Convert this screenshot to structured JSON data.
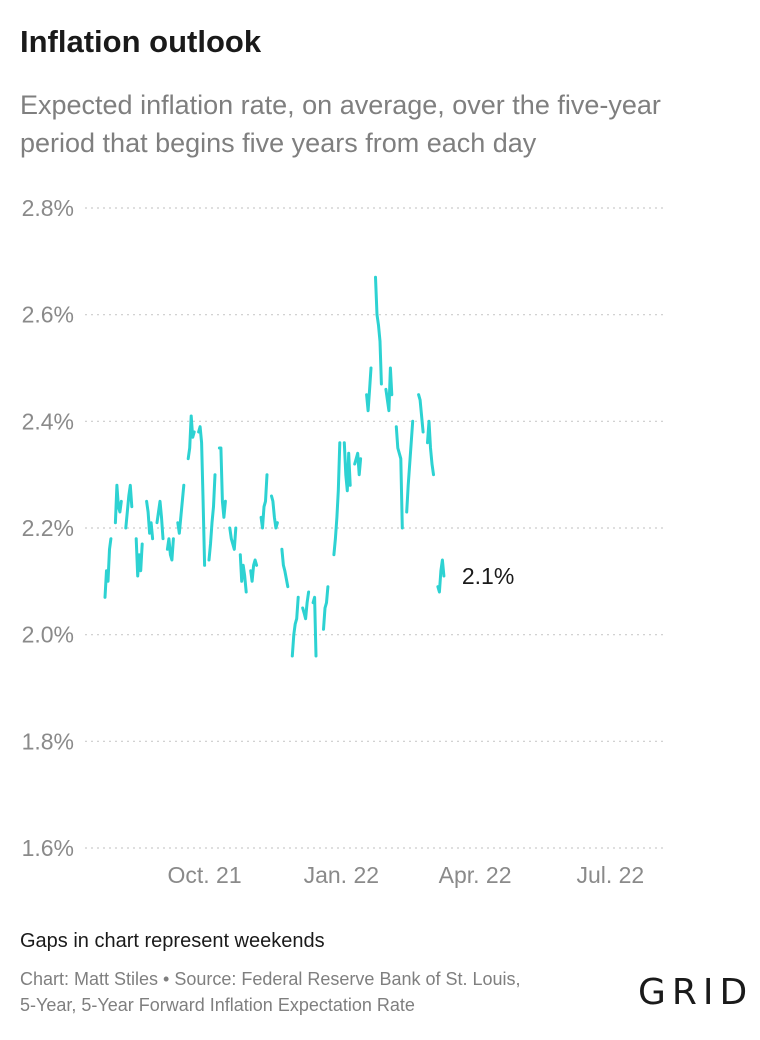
{
  "header": {
    "title": "Inflation outlook",
    "subtitle": "Expected inflation rate, on average, over the five-year period that begins five years from each day"
  },
  "footer": {
    "note": "Gaps in chart represent weekends",
    "credit_line1": "Chart: Matt Stiles • Source: Federal Reserve Bank of St. Louis,",
    "credit_line2": "5-Year, 5-Year Forward Inflation Expectation Rate",
    "logo": "GRID"
  },
  "colors": {
    "line": "#2dd2d2",
    "grid": "#cccccc",
    "tick_text": "#8a8a8a"
  },
  "chart_data": {
    "type": "line",
    "title": "Inflation outlook",
    "subtitle": "Expected inflation rate, on average, over the five-year period that begins five years from each day",
    "ylim": [
      1.6,
      2.8
    ],
    "y_ticks": [
      {
        "value": 1.6,
        "label": "1.6%"
      },
      {
        "value": 1.8,
        "label": "1.8%"
      },
      {
        "value": 2.0,
        "label": "2.0%"
      },
      {
        "value": 2.2,
        "label": "2.2%"
      },
      {
        "value": 2.4,
        "label": "2.4%"
      },
      {
        "value": 2.6,
        "label": "2.6%"
      },
      {
        "value": 2.8,
        "label": "2.8%"
      }
    ],
    "xlim": [
      "2021-07-26",
      "2022-07-25"
    ],
    "x_ticks": [
      {
        "date": "2021-10-01",
        "label": "Oct. 21"
      },
      {
        "date": "2022-01-01",
        "label": "Jan. 22"
      },
      {
        "date": "2022-04-01",
        "label": "Apr. 22"
      },
      {
        "date": "2022-07-01",
        "label": "Jul. 22"
      }
    ],
    "grid": true,
    "end_label": "2.1%",
    "series": [
      {
        "segments": [
          [
            [
              "2021-07-26",
              2.07
            ],
            [
              "2021-07-27",
              2.12
            ],
            [
              "2021-07-28",
              2.1
            ],
            [
              "2021-07-29",
              2.16
            ],
            [
              "2021-07-30",
              2.18
            ]
          ],
          [
            [
              "2021-08-02",
              2.21
            ],
            [
              "2021-08-03",
              2.28
            ],
            [
              "2021-08-04",
              2.24
            ],
            [
              "2021-08-05",
              2.23
            ],
            [
              "2021-08-06",
              2.25
            ]
          ],
          [
            [
              "2021-08-09",
              2.2
            ],
            [
              "2021-08-10",
              2.23
            ],
            [
              "2021-08-11",
              2.26
            ],
            [
              "2021-08-12",
              2.28
            ],
            [
              "2021-08-13",
              2.24
            ]
          ],
          [
            [
              "2021-08-16",
              2.18
            ],
            [
              "2021-08-17",
              2.11
            ],
            [
              "2021-08-18",
              2.15
            ],
            [
              "2021-08-19",
              2.12
            ],
            [
              "2021-08-20",
              2.17
            ]
          ],
          [
            [
              "2021-08-23",
              2.25
            ],
            [
              "2021-08-24",
              2.23
            ],
            [
              "2021-08-25",
              2.19
            ],
            [
              "2021-08-26",
              2.21
            ],
            [
              "2021-08-27",
              2.18
            ]
          ],
          [
            [
              "2021-08-30",
              2.21
            ],
            [
              "2021-08-31",
              2.23
            ],
            [
              "2021-09-01",
              2.25
            ],
            [
              "2021-09-02",
              2.22
            ],
            [
              "2021-09-03",
              2.18
            ]
          ],
          [
            [
              "2021-09-06",
              2.16
            ],
            [
              "2021-09-07",
              2.18
            ],
            [
              "2021-09-08",
              2.15
            ],
            [
              "2021-09-09",
              2.14
            ],
            [
              "2021-09-10",
              2.18
            ]
          ],
          [
            [
              "2021-09-13",
              2.21
            ],
            [
              "2021-09-14",
              2.19
            ],
            [
              "2021-09-15",
              2.22
            ],
            [
              "2021-09-16",
              2.25
            ],
            [
              "2021-09-17",
              2.28
            ]
          ],
          [
            [
              "2021-09-20",
              2.33
            ],
            [
              "2021-09-21",
              2.35
            ],
            [
              "2021-09-22",
              2.41
            ],
            [
              "2021-09-23",
              2.37
            ],
            [
              "2021-09-24",
              2.38
            ]
          ],
          [
            [
              "2021-09-27",
              2.38
            ],
            [
              "2021-09-28",
              2.39
            ],
            [
              "2021-09-29",
              2.36
            ],
            [
              "2021-09-30",
              2.25
            ],
            [
              "2021-10-01",
              2.13
            ]
          ],
          [
            [
              "2021-10-04",
              2.14
            ],
            [
              "2021-10-05",
              2.17
            ],
            [
              "2021-10-06",
              2.21
            ],
            [
              "2021-10-07",
              2.24
            ],
            [
              "2021-10-08",
              2.3
            ]
          ],
          [
            [
              "2021-10-11",
              2.35
            ],
            [
              "2021-10-12",
              2.35
            ],
            [
              "2021-10-13",
              2.25
            ],
            [
              "2021-10-14",
              2.22
            ],
            [
              "2021-10-15",
              2.25
            ]
          ],
          [
            [
              "2021-10-18",
              2.2
            ],
            [
              "2021-10-19",
              2.18
            ],
            [
              "2021-10-20",
              2.17
            ],
            [
              "2021-10-21",
              2.16
            ],
            [
              "2021-10-22",
              2.2
            ]
          ],
          [
            [
              "2021-10-25",
              2.15
            ],
            [
              "2021-10-26",
              2.1
            ],
            [
              "2021-10-27",
              2.13
            ],
            [
              "2021-10-28",
              2.11
            ],
            [
              "2021-10-29",
              2.08
            ]
          ],
          [
            [
              "2021-11-01",
              2.12
            ],
            [
              "2021-11-02",
              2.1
            ],
            [
              "2021-11-03",
              2.13
            ],
            [
              "2021-11-04",
              2.14
            ],
            [
              "2021-11-05",
              2.13
            ]
          ],
          [
            [
              "2021-11-08",
              2.22
            ],
            [
              "2021-11-09",
              2.2
            ],
            [
              "2021-11-10",
              2.24
            ],
            [
              "2021-11-11",
              2.25
            ],
            [
              "2021-11-12",
              2.3
            ]
          ],
          [
            [
              "2021-11-15",
              2.26
            ],
            [
              "2021-11-16",
              2.25
            ],
            [
              "2021-11-17",
              2.22
            ],
            [
              "2021-11-18",
              2.2
            ],
            [
              "2021-11-19",
              2.21
            ]
          ],
          [
            [
              "2021-11-22",
              2.16
            ],
            [
              "2021-11-23",
              2.13
            ],
            [
              "2021-11-24",
              2.12
            ],
            [
              "2021-11-26",
              2.09
            ]
          ],
          [
            [
              "2021-11-29",
              1.96
            ],
            [
              "2021-11-30",
              2.0
            ],
            [
              "2021-12-01",
              2.02
            ],
            [
              "2021-12-02",
              2.03
            ],
            [
              "2021-12-03",
              2.07
            ]
          ],
          [
            [
              "2021-12-06",
              2.05
            ],
            [
              "2021-12-07",
              2.04
            ],
            [
              "2021-12-08",
              2.03
            ],
            [
              "2021-12-09",
              2.06
            ],
            [
              "2021-12-10",
              2.08
            ]
          ],
          [
            [
              "2021-12-13",
              2.06
            ],
            [
              "2021-12-14",
              2.07
            ],
            [
              "2021-12-15",
              1.96
            ]
          ],
          [
            [
              "2021-12-20",
              2.01
            ],
            [
              "2021-12-21",
              2.05
            ],
            [
              "2021-12-22",
              2.06
            ],
            [
              "2021-12-23",
              2.09
            ]
          ],
          [
            [
              "2021-12-27",
              2.15
            ],
            [
              "2021-12-28",
              2.18
            ],
            [
              "2021-12-29",
              2.22
            ],
            [
              "2021-12-30",
              2.27
            ],
            [
              "2021-12-31",
              2.36
            ]
          ],
          [
            [
              "2022-01-03",
              2.36
            ],
            [
              "2022-01-04",
              2.3
            ],
            [
              "2022-01-05",
              2.27
            ],
            [
              "2022-01-06",
              2.34
            ],
            [
              "2022-01-07",
              2.28
            ]
          ],
          [
            [
              "2022-01-10",
              2.32
            ],
            [
              "2022-01-11",
              2.33
            ],
            [
              "2022-01-12",
              2.34
            ],
            [
              "2022-01-13",
              2.3
            ],
            [
              "2022-01-14",
              2.33
            ]
          ],
          [
            [
              "2022-01-18",
              2.45
            ],
            [
              "2022-01-19",
              2.42
            ],
            [
              "2022-01-20",
              2.46
            ],
            [
              "2022-01-21",
              2.5
            ]
          ],
          [
            [
              "2022-01-24",
              2.67
            ],
            [
              "2022-01-25",
              2.6
            ],
            [
              "2022-01-26",
              2.58
            ],
            [
              "2022-01-27",
              2.55
            ],
            [
              "2022-01-28",
              2.47
            ]
          ],
          [
            [
              "2022-01-31",
              2.46
            ],
            [
              "2022-02-01",
              2.44
            ],
            [
              "2022-02-02",
              2.42
            ],
            [
              "2022-02-03",
              2.5
            ],
            [
              "2022-02-04",
              2.45
            ]
          ],
          [
            [
              "2022-02-07",
              2.39
            ],
            [
              "2022-02-08",
              2.35
            ],
            [
              "2022-02-09",
              2.34
            ],
            [
              "2022-02-10",
              2.33
            ],
            [
              "2022-02-11",
              2.2
            ]
          ],
          [
            [
              "2022-02-14",
              2.23
            ],
            [
              "2022-02-15",
              2.28
            ],
            [
              "2022-02-16",
              2.32
            ],
            [
              "2022-02-17",
              2.36
            ],
            [
              "2022-02-18",
              2.4
            ]
          ],
          [
            [
              "2022-02-22",
              2.45
            ],
            [
              "2022-02-23",
              2.44
            ],
            [
              "2022-02-24",
              2.41
            ],
            [
              "2022-02-25",
              2.38
            ]
          ],
          [
            [
              "2022-02-28",
              2.36
            ],
            [
              "2022-03-01",
              2.4
            ],
            [
              "2022-03-02",
              2.35
            ],
            [
              "2022-03-03",
              2.32
            ],
            [
              "2022-03-04",
              2.3
            ]
          ],
          [
            [
              "2022-03-07",
              2.09
            ],
            [
              "2022-03-08",
              2.08
            ],
            [
              "2022-03-09",
              2.12
            ],
            [
              "2022-03-10",
              2.14
            ],
            [
              "2022-03-11",
              2.11
            ]
          ]
        ]
      }
    ]
  }
}
